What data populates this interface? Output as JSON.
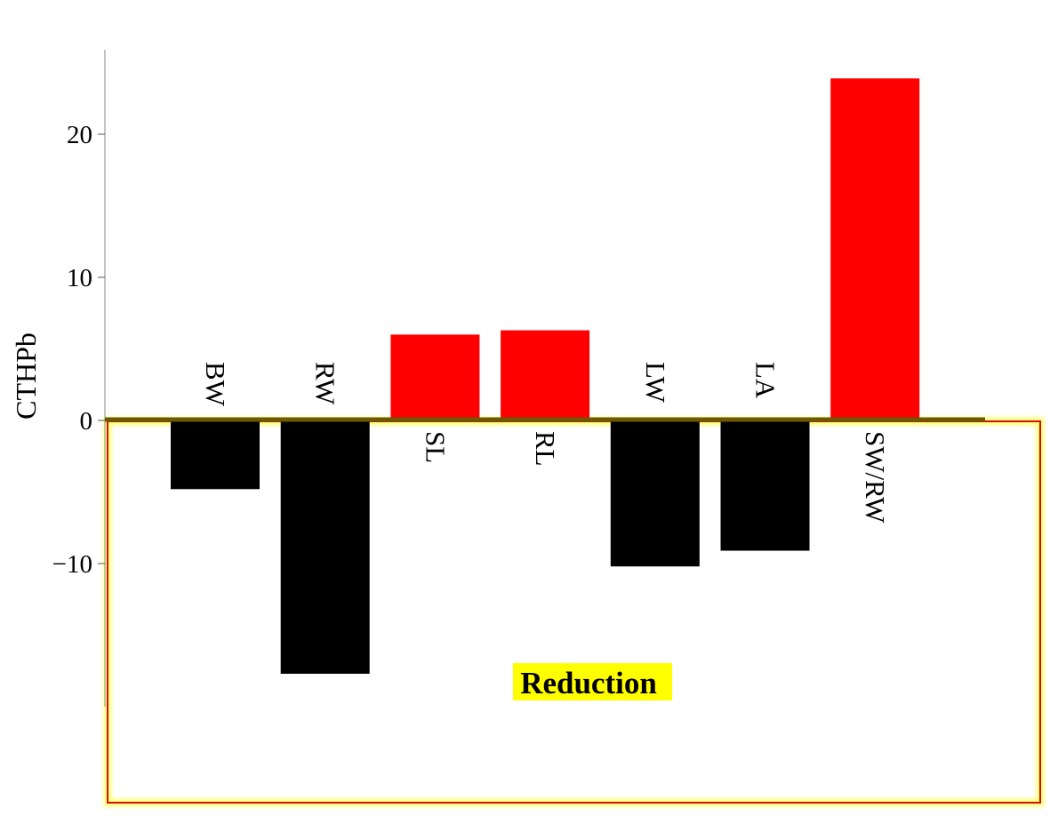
{
  "chart_data": {
    "type": "bar",
    "title": "",
    "xlabel": "",
    "ylabel": "CTHPb",
    "categories": [
      "BW",
      "RW",
      "SL",
      "RL",
      "LW",
      "LA",
      "SW/RW"
    ],
    "values": [
      -4.8,
      -17.7,
      6.0,
      6.3,
      -10.2,
      -9.1,
      23.9
    ],
    "ylim": [
      -20,
      26
    ],
    "yticks": [
      -10,
      0,
      10,
      20
    ],
    "ytick_labels": [
      "−10",
      "0",
      "10",
      "20"
    ],
    "grid": false,
    "legend": "none",
    "colors": {
      "positive": "#ff0000",
      "negative": "#000000",
      "zero_line": "#6b5a00",
      "highlight_border": "#d01010",
      "highlight_glow": "#ffff66",
      "annotation_background": "#ffff00"
    },
    "annotations": [
      {
        "text": "Reduction",
        "style": "highlighted-box"
      }
    ]
  }
}
